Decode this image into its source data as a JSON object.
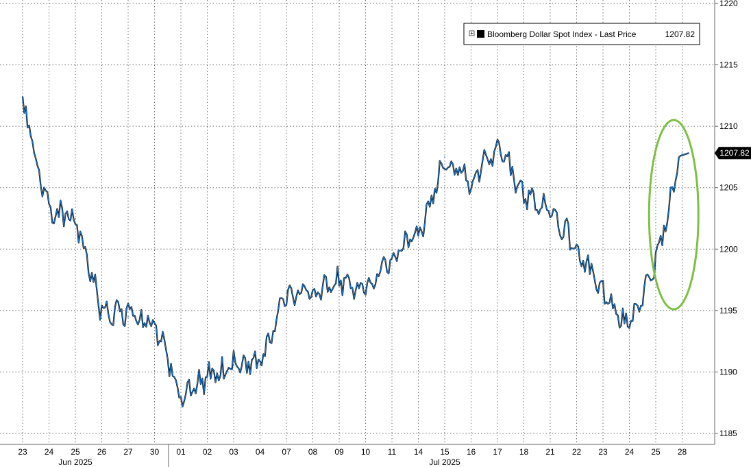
{
  "chart_data": {
    "type": "line",
    "series": [
      {
        "name": "Bloomberg Dollar Spot Index",
        "color": "#1f77c8",
        "x": [
          "23",
          "24",
          "25",
          "26",
          "27",
          "30",
          "01",
          "02",
          "03",
          "04",
          "07",
          "08",
          "09",
          "10",
          "11",
          "14",
          "15",
          "16",
          "17",
          "18",
          "21",
          "22",
          "23",
          "24",
          "25",
          "28"
        ],
        "values": [
          1212.0,
          1203.0,
          1202.5,
          1195.0,
          1194.5,
          1194.0,
          1188.0,
          1189.5,
          1190.5,
          1190.5,
          1196.5,
          1196.5,
          1197.5,
          1196.5,
          1199.5,
          1201.0,
          1207.5,
          1205.5,
          1208.5,
          1204.5,
          1203.5,
          1200.0,
          1196.5,
          1193.5,
          1199.0,
          1207.82
        ]
      }
    ],
    "categories": [
      "23",
      "24",
      "25",
      "26",
      "27",
      "30",
      "01",
      "02",
      "03",
      "04",
      "07",
      "08",
      "09",
      "10",
      "11",
      "14",
      "15",
      "16",
      "17",
      "18",
      "21",
      "22",
      "23",
      "24",
      "25",
      "28"
    ],
    "month_labels": [
      {
        "label": "Jun 2025",
        "at": "25"
      },
      {
        "label": "Jul 2025",
        "at": "15"
      }
    ],
    "y_ticks": [
      "1185",
      "1190",
      "1195",
      "1200",
      "1205",
      "1210",
      "1215",
      "1220"
    ],
    "ylim": [
      1185,
      1220
    ],
    "y_axis_side": "right",
    "grid": true,
    "legend": {
      "placement": "top-right",
      "label": "Bloomberg Dollar Spot Index - Last Price",
      "value": "1207.82"
    },
    "last_price": "1207.82",
    "annotations": [
      {
        "type": "ellipse",
        "color": "#7dc043",
        "x_from": "25",
        "x_to": "28"
      }
    ]
  }
}
